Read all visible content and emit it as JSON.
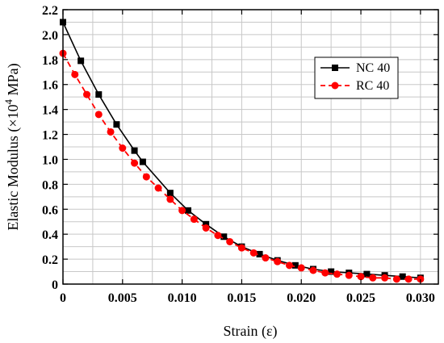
{
  "chart_data": {
    "type": "line",
    "xlabel": "Strain (ε)",
    "ylabel": "Elastic Modulus (×10",
    "ylabel_sup": "4",
    "ylabel_unit": " MPa)",
    "xlim": [
      0,
      0.0315
    ],
    "ylim": [
      0,
      2.2
    ],
    "xticks": [
      "0",
      "0.005",
      "0.010",
      "0.015",
      "0.020",
      "0.025",
      "0.030"
    ],
    "xtick_values": [
      0,
      0.005,
      0.01,
      0.015,
      0.02,
      0.025,
      0.03
    ],
    "yticks": [
      "0",
      "0.2",
      "0.4",
      "0.6",
      "0.8",
      "1.0",
      "1.2",
      "1.4",
      "1.6",
      "1.8",
      "2.0",
      "2.2"
    ],
    "ytick_values": [
      0,
      0.2,
      0.4,
      0.6,
      0.8,
      1.0,
      1.2,
      1.4,
      1.6,
      1.8,
      2.0,
      2.2
    ],
    "grid": true,
    "legend_position": "top-right",
    "series": [
      {
        "name": "NC 40",
        "color": "#000000",
        "marker": "square",
        "line_style": "solid",
        "x": [
          0,
          0.0015,
          0.003,
          0.0045,
          0.006,
          0.0067,
          0.009,
          0.0105,
          0.012,
          0.0135,
          0.015,
          0.0165,
          0.018,
          0.0195,
          0.021,
          0.0225,
          0.024,
          0.0255,
          0.027,
          0.0285,
          0.03
        ],
        "y": [
          2.1,
          1.79,
          1.52,
          1.28,
          1.07,
          0.98,
          0.73,
          0.59,
          0.48,
          0.38,
          0.3,
          0.24,
          0.19,
          0.15,
          0.12,
          0.1,
          0.09,
          0.08,
          0.07,
          0.06,
          0.05
        ]
      },
      {
        "name": "RC 40",
        "color": "#ff0000",
        "marker": "circle",
        "line_style": "dashed",
        "x": [
          0,
          0.001,
          0.002,
          0.003,
          0.004,
          0.005,
          0.006,
          0.007,
          0.008,
          0.009,
          0.01,
          0.011,
          0.012,
          0.013,
          0.014,
          0.015,
          0.016,
          0.017,
          0.018,
          0.019,
          0.02,
          0.021,
          0.022,
          0.023,
          0.024,
          0.025,
          0.026,
          0.027,
          0.028,
          0.029,
          0.03
        ],
        "y": [
          1.85,
          1.68,
          1.52,
          1.36,
          1.22,
          1.09,
          0.97,
          0.86,
          0.77,
          0.68,
          0.59,
          0.52,
          0.45,
          0.39,
          0.34,
          0.29,
          0.25,
          0.21,
          0.18,
          0.15,
          0.13,
          0.11,
          0.09,
          0.08,
          0.07,
          0.06,
          0.05,
          0.05,
          0.04,
          0.04,
          0.04
        ]
      }
    ]
  }
}
